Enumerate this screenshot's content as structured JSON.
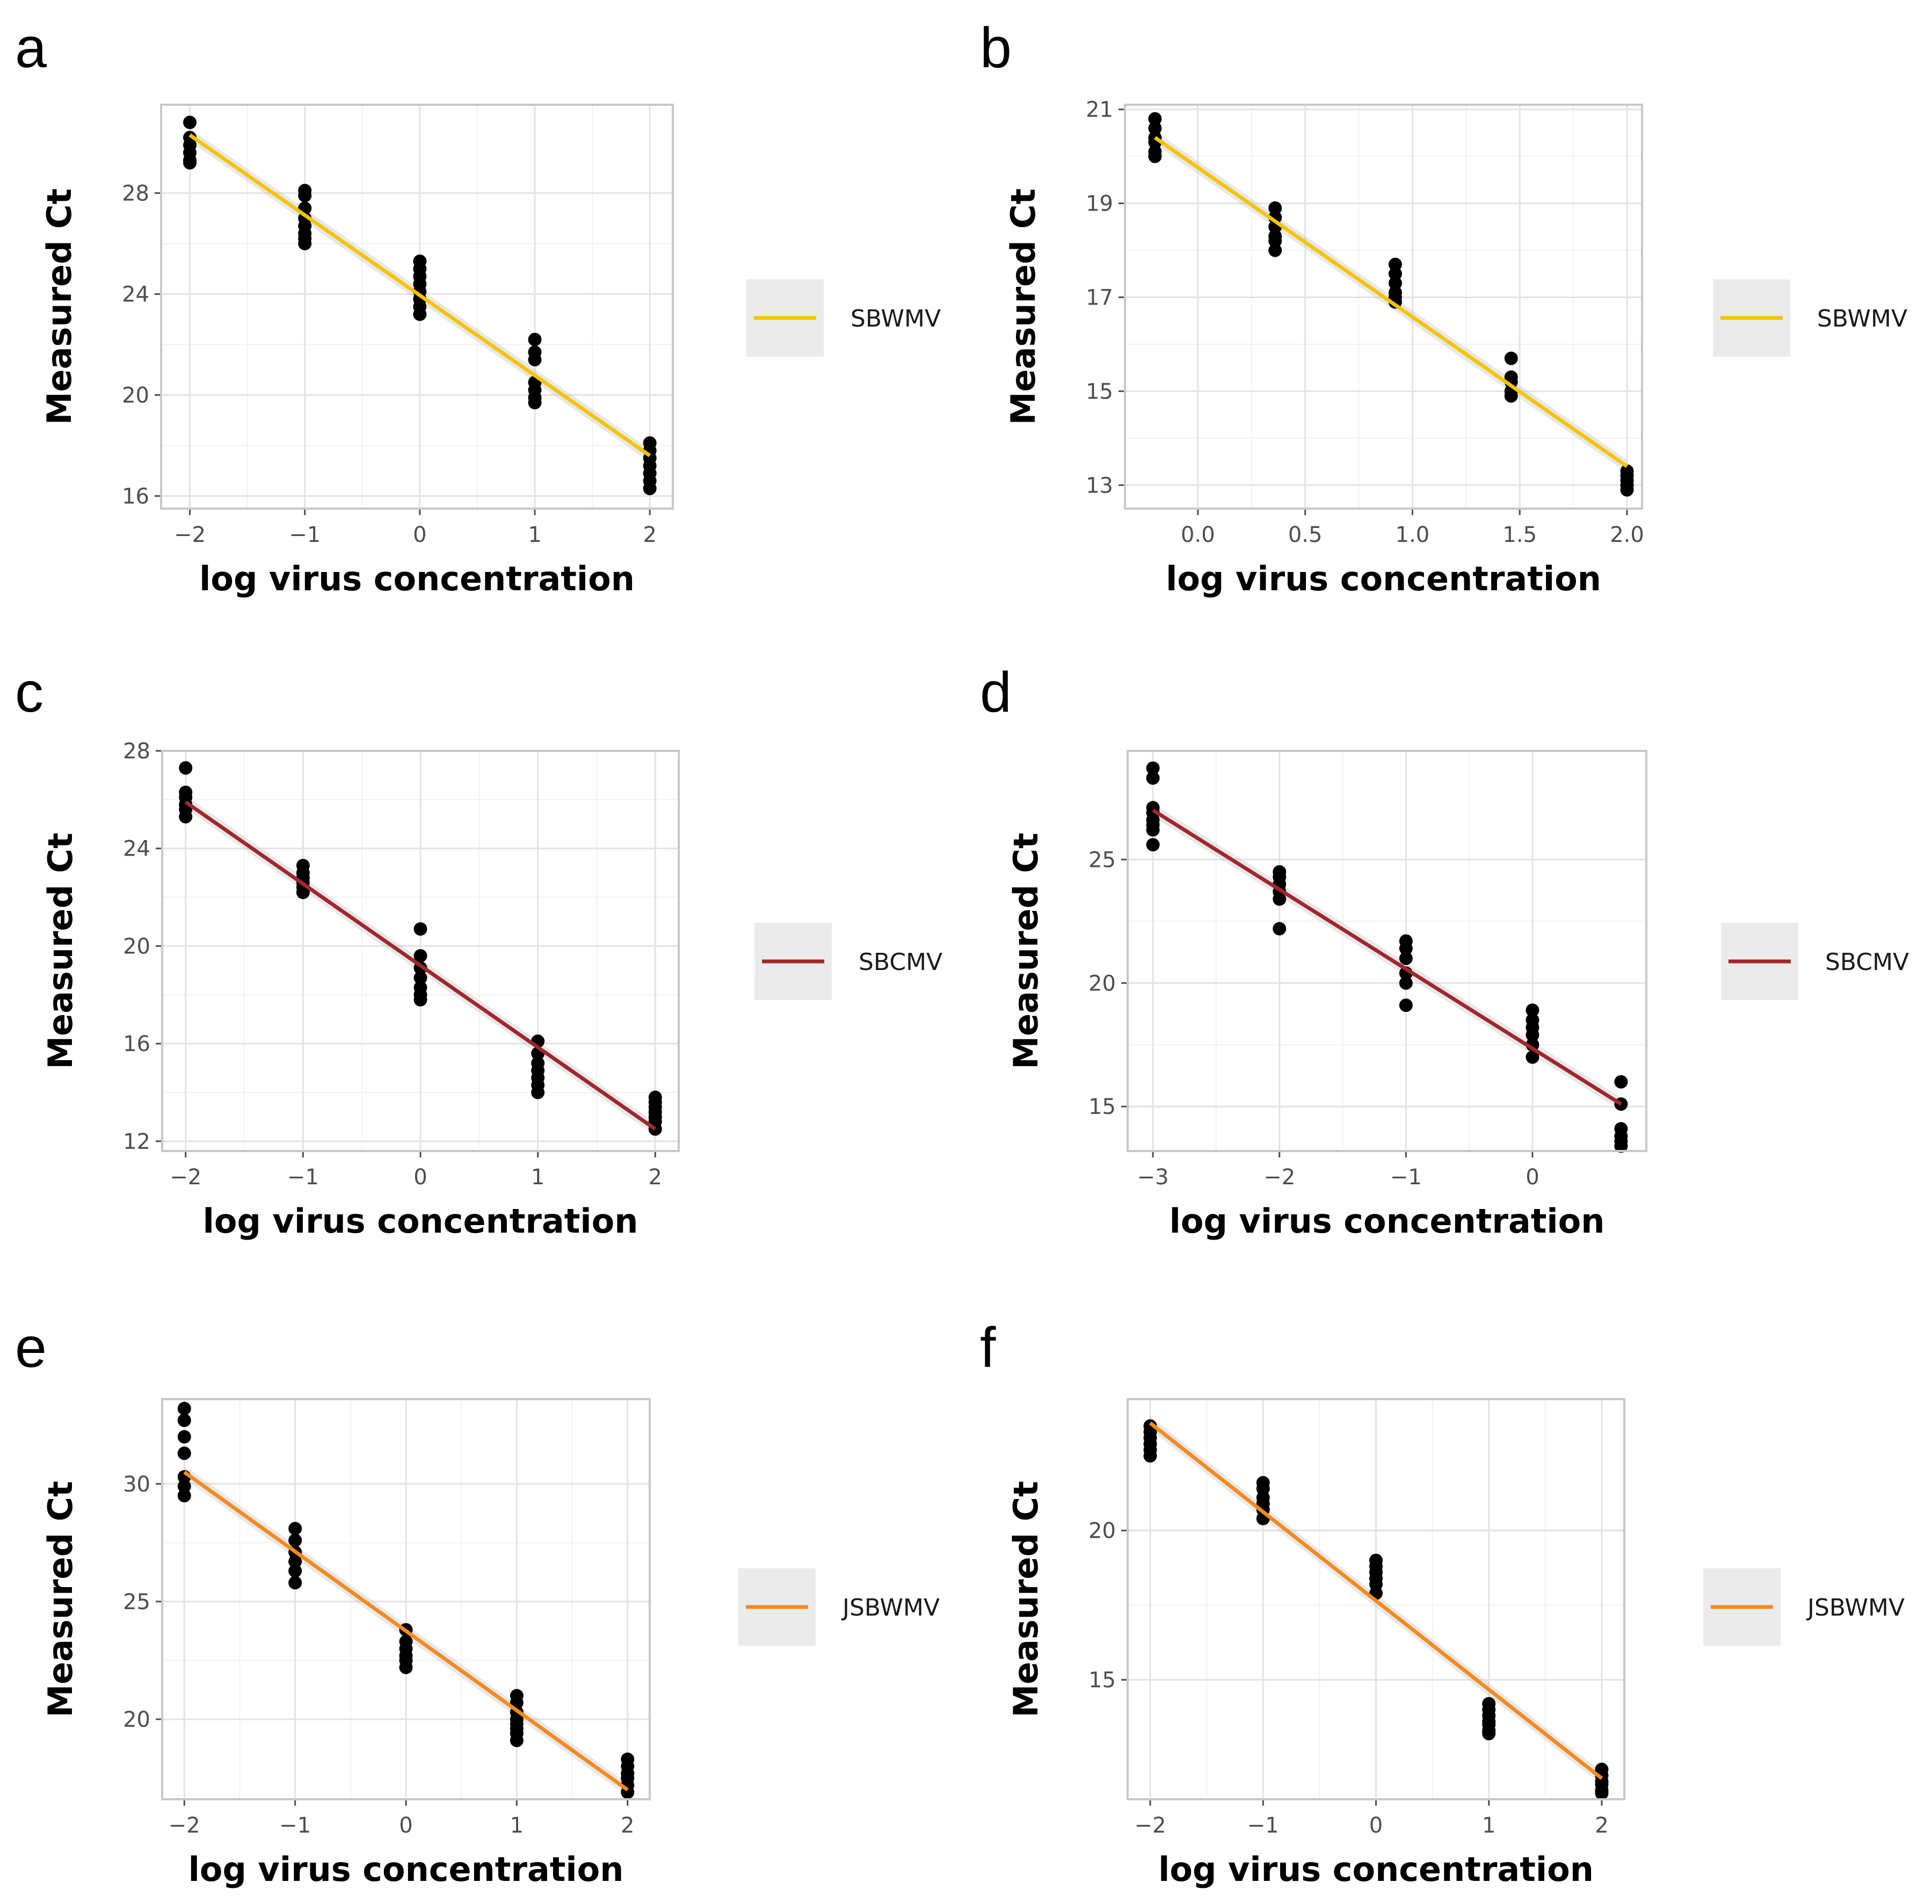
{
  "figure": {
    "panels": [
      "a",
      "b",
      "c",
      "d",
      "e",
      "f"
    ]
  },
  "colors": {
    "SBWMV": "#F5C400",
    "SBCMV": "#A0272D",
    "JSBWMV": "#F58A1F",
    "points": "#000000",
    "ribbon": "#BEBEBE"
  },
  "chart_data": [
    {
      "panel": "a",
      "type": "scatter",
      "xlabel": "log virus concentration",
      "ylabel": "Measured Ct",
      "xlim": [
        -2.25,
        2.2
      ],
      "ylim": [
        15.5,
        31.5
      ],
      "xticks": [
        -2,
        -1,
        0,
        1,
        2
      ],
      "xtick_labels": [
        "−2",
        "−1",
        "0",
        "1",
        "2"
      ],
      "yticks": [
        16,
        20,
        24,
        28
      ],
      "ytick_labels": [
        "16",
        "20",
        "24",
        "28"
      ],
      "legend": "SBWMV",
      "color": "#F5C400",
      "fit": {
        "x": [
          -2,
          2
        ],
        "y": [
          30.3,
          17.6
        ]
      },
      "points": {
        "x": [
          -2,
          -2,
          -2,
          -2,
          -2,
          -2,
          -1,
          -1,
          -1,
          -1,
          -1,
          -1,
          -1,
          -1,
          0,
          0,
          0,
          0,
          0,
          0,
          0,
          0,
          1,
          1,
          1,
          1,
          1,
          1,
          1,
          2,
          2,
          2,
          2,
          2,
          2,
          2
        ],
        "y": [
          30.8,
          30.2,
          29.9,
          29.6,
          29.3,
          29.2,
          28.1,
          27.9,
          27.4,
          27.0,
          26.7,
          26.4,
          26.2,
          26.0,
          25.3,
          25.0,
          24.7,
          24.4,
          24.1,
          23.8,
          23.5,
          23.2,
          22.2,
          21.7,
          21.4,
          20.5,
          20.2,
          19.9,
          19.7,
          18.1,
          17.8,
          17.5,
          17.2,
          16.9,
          16.6,
          16.3
        ]
      }
    },
    {
      "panel": "b",
      "type": "scatter",
      "xlabel": "log virus concentration",
      "ylabel": "Measured Ct",
      "xlim": [
        -0.34,
        2.07
      ],
      "ylim": [
        12.5,
        21.1
      ],
      "xticks": [
        0.0,
        0.5,
        1.0,
        1.5,
        2.0
      ],
      "xtick_labels": [
        "0.0",
        "0.5",
        "1.0",
        "1.5",
        "2.0"
      ],
      "yticks": [
        13,
        15,
        17,
        19,
        21
      ],
      "ytick_labels": [
        "13",
        "15",
        "17",
        "19",
        "21"
      ],
      "legend": "SBWMV",
      "color": "#F5C400",
      "fit": {
        "x": [
          -0.2,
          2.0
        ],
        "y": [
          20.4,
          13.4
        ]
      },
      "points": {
        "x": [
          -0.2,
          -0.2,
          -0.2,
          -0.2,
          -0.2,
          -0.2,
          0.36,
          0.36,
          0.36,
          0.36,
          0.36,
          0.36,
          0.92,
          0.92,
          0.92,
          0.92,
          0.92,
          0.92,
          1.46,
          1.46,
          1.46,
          1.46,
          1.46,
          2.0,
          2.0,
          2.0,
          2.0,
          2.0
        ],
        "y": [
          20.8,
          20.6,
          20.4,
          20.3,
          20.1,
          20.0,
          18.9,
          18.7,
          18.5,
          18.3,
          18.2,
          18.0,
          17.7,
          17.5,
          17.3,
          17.1,
          17.0,
          16.9,
          15.7,
          15.3,
          15.2,
          15.0,
          14.9,
          13.3,
          13.2,
          13.1,
          13.0,
          12.9
        ]
      }
    },
    {
      "panel": "c",
      "type": "scatter",
      "xlabel": "log virus concentration",
      "ylabel": "Measured Ct",
      "xlim": [
        -2.2,
        2.2
      ],
      "ylim": [
        11.6,
        28.0
      ],
      "xticks": [
        -2,
        -1,
        0,
        1,
        2
      ],
      "xtick_labels": [
        "−2",
        "−1",
        "0",
        "1",
        "2"
      ],
      "yticks": [
        12,
        16,
        20,
        24,
        28
      ],
      "ytick_labels": [
        "12",
        "16",
        "20",
        "24",
        "28"
      ],
      "legend": "SBCMV",
      "color": "#A0272D",
      "fit": {
        "x": [
          -2,
          2
        ],
        "y": [
          25.9,
          12.5
        ]
      },
      "points": {
        "x": [
          -2,
          -2,
          -2,
          -2,
          -2,
          -2,
          -1,
          -1,
          -1,
          -1,
          -1,
          -1,
          0,
          0,
          0,
          0,
          0,
          0,
          0,
          1,
          1,
          1,
          1,
          1,
          1,
          1,
          2,
          2,
          2,
          2,
          2,
          2,
          2
        ],
        "y": [
          27.3,
          26.3,
          26.1,
          25.8,
          25.6,
          25.3,
          23.3,
          23.0,
          22.8,
          22.6,
          22.4,
          22.2,
          20.7,
          19.6,
          19.1,
          18.7,
          18.3,
          18.0,
          17.8,
          16.1,
          15.6,
          15.2,
          14.9,
          14.6,
          14.3,
          14.0,
          13.8,
          13.6,
          13.4,
          13.2,
          13.0,
          12.8,
          12.5
        ]
      }
    },
    {
      "panel": "d",
      "type": "scatter",
      "xlabel": "log virus concentration",
      "ylabel": "Measured Ct",
      "xlim": [
        -3.2,
        0.9
      ],
      "ylim": [
        13.2,
        29.4
      ],
      "xticks": [
        -3,
        -2,
        -1,
        0
      ],
      "xtick_labels": [
        "−3",
        "−2",
        "−1",
        "0"
      ],
      "yticks": [
        15,
        20,
        25
      ],
      "ytick_labels": [
        "15",
        "20",
        "25"
      ],
      "legend": "SBCMV",
      "color": "#A0272D",
      "fit": {
        "x": [
          -3,
          0.7
        ],
        "y": [
          27.0,
          15.1
        ]
      },
      "points": {
        "x": [
          -3,
          -3,
          -3,
          -3,
          -3,
          -3,
          -3,
          -3,
          -2,
          -2,
          -2,
          -2,
          -2,
          -2,
          -1,
          -1,
          -1,
          -1,
          -1,
          -1,
          0,
          0,
          0,
          0,
          0,
          0,
          0.7,
          0.7,
          0.7,
          0.7,
          0.7,
          0.7
        ],
        "y": [
          28.7,
          28.3,
          27.1,
          26.9,
          26.6,
          26.4,
          26.2,
          25.6,
          24.5,
          24.3,
          24.0,
          23.7,
          23.4,
          22.2,
          21.7,
          21.4,
          21.0,
          20.4,
          20.0,
          19.1,
          18.9,
          18.5,
          18.2,
          17.9,
          17.5,
          17.0,
          16.0,
          15.1,
          14.1,
          13.8,
          13.6,
          13.4
        ]
      }
    },
    {
      "panel": "e",
      "type": "scatter",
      "xlabel": "log virus concentration",
      "ylabel": "Measured Ct",
      "xlim": [
        -2.2,
        2.2
      ],
      "ylim": [
        16.6,
        33.6
      ],
      "xticks": [
        -2,
        -1,
        0,
        1,
        2
      ],
      "xtick_labels": [
        "−2",
        "−1",
        "0",
        "1",
        "2"
      ],
      "yticks": [
        20,
        25,
        30
      ],
      "ytick_labels": [
        "20",
        "25",
        "30"
      ],
      "legend": "JSBWMV",
      "color": "#F58A1F",
      "fit": {
        "x": [
          -2,
          2
        ],
        "y": [
          30.5,
          17.0
        ]
      },
      "points": {
        "x": [
          -2,
          -2,
          -2,
          -2,
          -2,
          -2,
          -2,
          -1,
          -1,
          -1,
          -1,
          -1,
          -1,
          0,
          0,
          0,
          0,
          0,
          0,
          1,
          1,
          1,
          1,
          1,
          1,
          1,
          1,
          2,
          2,
          2,
          2,
          2,
          2
        ],
        "y": [
          33.2,
          32.7,
          32.0,
          31.3,
          30.3,
          29.9,
          29.5,
          28.1,
          27.6,
          27.1,
          26.7,
          26.3,
          25.8,
          23.8,
          23.3,
          23.0,
          22.7,
          22.5,
          22.2,
          21.0,
          20.7,
          20.3,
          20.0,
          19.8,
          19.6,
          19.4,
          19.1,
          18.3,
          18.0,
          17.7,
          17.5,
          17.2,
          16.9
        ]
      }
    },
    {
      "panel": "f",
      "type": "scatter",
      "xlabel": "log virus concentration",
      "ylabel": "Measured Ct",
      "xlim": [
        -2.2,
        2.2
      ],
      "ylim": [
        11.0,
        24.4
      ],
      "xticks": [
        -2,
        -1,
        0,
        1,
        2
      ],
      "xtick_labels": [
        "−2",
        "−1",
        "0",
        "1",
        "2"
      ],
      "yticks": [
        15,
        20
      ],
      "ytick_labels": [
        "15",
        "20"
      ],
      "legend": "JSBWMV",
      "color": "#F58A1F",
      "fit": {
        "x": [
          -2,
          2
        ],
        "y": [
          23.6,
          11.7
        ]
      },
      "points": {
        "x": [
          -2,
          -2,
          -2,
          -2,
          -2,
          -2,
          -1,
          -1,
          -1,
          -1,
          -1,
          -1,
          0,
          0,
          0,
          0,
          0,
          0,
          1,
          1,
          1,
          1,
          1,
          1,
          1,
          2,
          2,
          2,
          2,
          2,
          2
        ],
        "y": [
          23.5,
          23.3,
          23.1,
          22.9,
          22.7,
          22.5,
          21.6,
          21.4,
          21.1,
          20.9,
          20.7,
          20.4,
          19.0,
          18.8,
          18.6,
          18.4,
          18.2,
          17.9,
          14.2,
          14.0,
          13.8,
          13.6,
          13.5,
          13.3,
          13.2,
          12.0,
          11.8,
          11.6,
          11.5,
          11.3,
          11.2
        ]
      }
    }
  ]
}
